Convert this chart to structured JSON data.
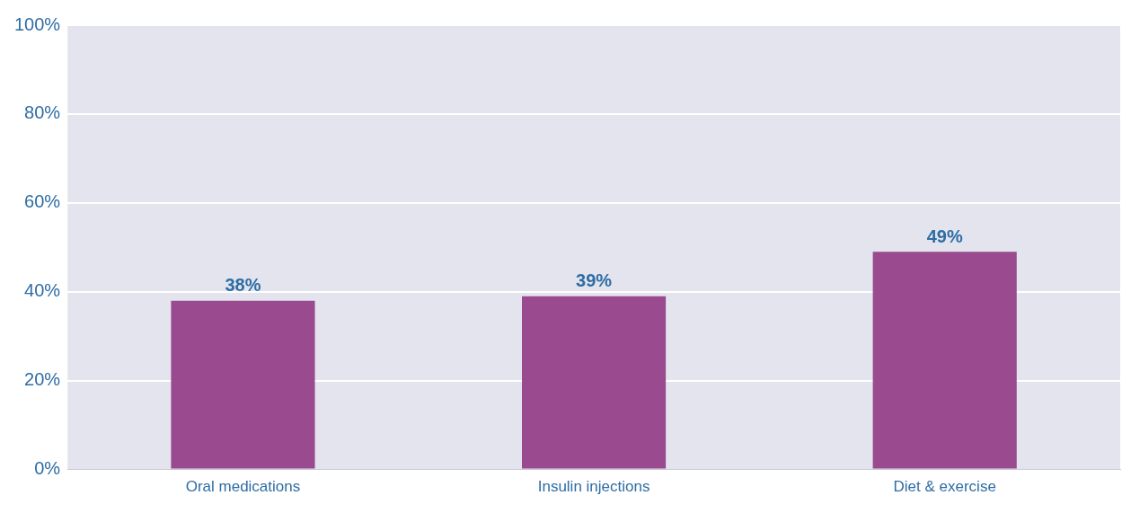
{
  "chart_data": {
    "type": "bar",
    "categories": [
      "Oral medications",
      "Insulin injections",
      "Diet & exercise"
    ],
    "values": [
      38,
      39,
      49
    ],
    "value_labels": [
      "38%",
      "39%",
      "49%"
    ],
    "color": "#9a4a8e",
    "ylim": [
      0,
      100
    ],
    "yticks": [
      {
        "value": 0,
        "label": "0%"
      },
      {
        "value": 20,
        "label": "20%"
      },
      {
        "value": 40,
        "label": "40%"
      },
      {
        "value": 60,
        "label": "60%"
      },
      {
        "value": 80,
        "label": "80%"
      },
      {
        "value": 100,
        "label": "100%"
      }
    ],
    "grid": "y",
    "legend": false
  }
}
